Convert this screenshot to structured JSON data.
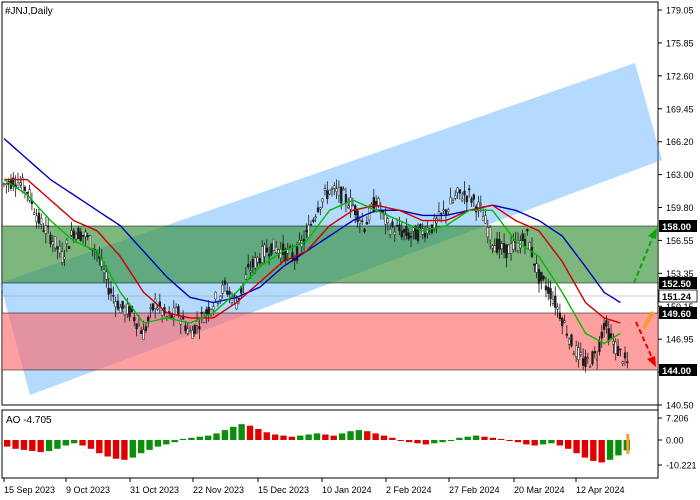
{
  "symbol_label": "#JNJ,Daily",
  "colors": {
    "bull": "#0a8f0a",
    "bear": "#e00000",
    "channel": "#4da6ff",
    "support_zone": "#ff6666",
    "resistance_zone": "#2e8b2e",
    "ma_fast": "#00bb00",
    "ma_mid": "#cc0000",
    "ma_slow": "#0000bb",
    "current_price_bg": "#ffffff",
    "level_bg": "#000000",
    "arrow_up": "#00aa00",
    "arrow_down": "#ee0000",
    "arrow_orange": "#ff9933"
  },
  "price_axis": {
    "ticks": [
      "179.05",
      "175.85",
      "172.60",
      "169.45",
      "166.20",
      "163.00",
      "159.80",
      "156.55",
      "153.35",
      "150.15",
      "146.95",
      "143.70",
      "140.50"
    ],
    "ylim": [
      140.5,
      179.05
    ]
  },
  "levels": {
    "resistance_top": "158.00",
    "resistance_bottom": "152.50",
    "current_price": "151.24",
    "support_top": "149.60",
    "support_bottom": "144.00"
  },
  "oscillator": {
    "label": "AO -4.705",
    "ticks": [
      "7.206",
      "0.00",
      "-10.221"
    ]
  },
  "time_axis": {
    "ticks": [
      "15 Sep 2023",
      "9 Oct 2023",
      "31 Oct 2023",
      "22 Nov 2023",
      "15 Dec 2023",
      "10 Jan 2024",
      "2 Feb 2024",
      "27 Feb 2024",
      "20 Mar 2024",
      "12 Apr 2024"
    ]
  },
  "chart_data": {
    "type": "candlestick",
    "title": "#JNJ,Daily",
    "ylim": [
      140.5,
      179.05
    ],
    "close_path": [
      [
        0,
        162.0
      ],
      [
        5,
        162.5
      ],
      [
        10,
        161.5
      ],
      [
        15,
        158.5
      ],
      [
        20,
        157.0
      ],
      [
        25,
        155.0
      ],
      [
        30,
        157.5
      ],
      [
        35,
        157.0
      ],
      [
        40,
        155.5
      ],
      [
        45,
        152.0
      ],
      [
        50,
        150.0
      ],
      [
        55,
        149.5
      ],
      [
        60,
        147.5
      ],
      [
        65,
        150.5
      ],
      [
        70,
        149.0
      ],
      [
        75,
        149.5
      ],
      [
        80,
        147.5
      ],
      [
        85,
        149.0
      ],
      [
        90,
        150.5
      ],
      [
        95,
        152.0
      ],
      [
        100,
        150.5
      ],
      [
        105,
        153.5
      ],
      [
        110,
        155.0
      ],
      [
        115,
        156.0
      ],
      [
        120,
        155.5
      ],
      [
        125,
        155.0
      ],
      [
        130,
        157.0
      ],
      [
        135,
        160.0
      ],
      [
        140,
        161.5
      ],
      [
        145,
        161.0
      ],
      [
        150,
        160.0
      ],
      [
        155,
        158.0
      ],
      [
        160,
        160.5
      ],
      [
        165,
        158.0
      ],
      [
        170,
        157.5
      ],
      [
        175,
        157.0
      ],
      [
        180,
        157.5
      ],
      [
        185,
        158.0
      ],
      [
        190,
        159.5
      ],
      [
        195,
        161.0
      ],
      [
        200,
        161.0
      ],
      [
        205,
        159.5
      ],
      [
        210,
        156.5
      ],
      [
        215,
        155.5
      ],
      [
        220,
        156.0
      ],
      [
        225,
        157.0
      ],
      [
        230,
        153.0
      ],
      [
        235,
        151.5
      ],
      [
        240,
        149.0
      ],
      [
        245,
        146.0
      ],
      [
        250,
        144.5
      ],
      [
        255,
        145.5
      ],
      [
        258,
        148.5
      ],
      [
        262,
        146.5
      ],
      [
        265,
        145.5
      ],
      [
        268,
        144.5
      ]
    ],
    "ma_fast": [
      [
        0,
        162.5
      ],
      [
        10,
        161.0
      ],
      [
        20,
        158.5
      ],
      [
        30,
        156.5
      ],
      [
        40,
        155.5
      ],
      [
        50,
        151.5
      ],
      [
        60,
        148.5
      ],
      [
        70,
        149.0
      ],
      [
        80,
        148.5
      ],
      [
        90,
        149.5
      ],
      [
        100,
        151.5
      ],
      [
        110,
        154.0
      ],
      [
        120,
        155.5
      ],
      [
        130,
        156.5
      ],
      [
        140,
        159.5
      ],
      [
        150,
        160.5
      ],
      [
        160,
        159.5
      ],
      [
        170,
        158.5
      ],
      [
        180,
        157.5
      ],
      [
        190,
        158.0
      ],
      [
        200,
        159.5
      ],
      [
        210,
        159.5
      ],
      [
        220,
        156.5
      ],
      [
        230,
        155.0
      ],
      [
        240,
        151.5
      ],
      [
        250,
        147.5
      ],
      [
        258,
        146.5
      ],
      [
        265,
        147.5
      ]
    ],
    "ma_mid": [
      [
        0,
        162.5
      ],
      [
        10,
        162.5
      ],
      [
        20,
        160.5
      ],
      [
        30,
        158.5
      ],
      [
        40,
        157.5
      ],
      [
        50,
        155.0
      ],
      [
        60,
        151.5
      ],
      [
        70,
        149.5
      ],
      [
        80,
        149.0
      ],
      [
        90,
        149.0
      ],
      [
        100,
        150.5
      ],
      [
        110,
        152.5
      ],
      [
        120,
        154.5
      ],
      [
        130,
        155.5
      ],
      [
        140,
        158.0
      ],
      [
        150,
        159.5
      ],
      [
        160,
        160.0
      ],
      [
        170,
        159.5
      ],
      [
        180,
        158.5
      ],
      [
        190,
        158.5
      ],
      [
        200,
        159.5
      ],
      [
        210,
        160.0
      ],
      [
        220,
        158.5
      ],
      [
        230,
        157.5
      ],
      [
        240,
        154.5
      ],
      [
        250,
        150.5
      ],
      [
        258,
        149.0
      ],
      [
        265,
        148.5
      ]
    ],
    "ma_slow": [
      [
        0,
        166.5
      ],
      [
        10,
        164.5
      ],
      [
        20,
        162.5
      ],
      [
        30,
        161.0
      ],
      [
        40,
        159.5
      ],
      [
        50,
        158.0
      ],
      [
        60,
        155.5
      ],
      [
        70,
        153.0
      ],
      [
        80,
        151.0
      ],
      [
        90,
        150.5
      ],
      [
        100,
        151.0
      ],
      [
        110,
        152.0
      ],
      [
        120,
        154.0
      ],
      [
        130,
        155.5
      ],
      [
        140,
        157.0
      ],
      [
        150,
        158.5
      ],
      [
        160,
        159.5
      ],
      [
        170,
        159.5
      ],
      [
        180,
        159.0
      ],
      [
        190,
        159.0
      ],
      [
        200,
        159.5
      ],
      [
        210,
        160.0
      ],
      [
        220,
        159.5
      ],
      [
        230,
        158.5
      ],
      [
        240,
        157.0
      ],
      [
        250,
        154.0
      ],
      [
        258,
        151.5
      ],
      [
        265,
        150.5
      ]
    ],
    "ao_values": [
      -3.0,
      -4.0,
      -4.5,
      -5.0,
      -5.5,
      -5.0,
      -4.0,
      -2.5,
      -1.5,
      -2.5,
      -4.0,
      -6.0,
      -7.5,
      -8.5,
      -9.0,
      -8.0,
      -6.0,
      -4.5,
      -3.0,
      -2.0,
      -1.0,
      0.5,
      1.0,
      1.5,
      2.0,
      3.0,
      4.5,
      6.0,
      7.2,
      6.5,
      5.0,
      3.5,
      2.5,
      2.0,
      1.5,
      2.0,
      2.5,
      3.0,
      2.5,
      2.0,
      3.0,
      4.0,
      4.5,
      4.0,
      3.0,
      2.0,
      1.0,
      0.0,
      -1.0,
      -1.5,
      -2.0,
      -1.5,
      -1.0,
      0.0,
      1.0,
      1.5,
      2.0,
      1.5,
      1.0,
      0.5,
      0.0,
      -1.0,
      -2.0,
      -2.5,
      -2.0,
      -1.5,
      -2.5,
      -4.0,
      -6.0,
      -8.0,
      -9.5,
      -10.2,
      -9.0,
      -7.0,
      -4.705
    ]
  }
}
